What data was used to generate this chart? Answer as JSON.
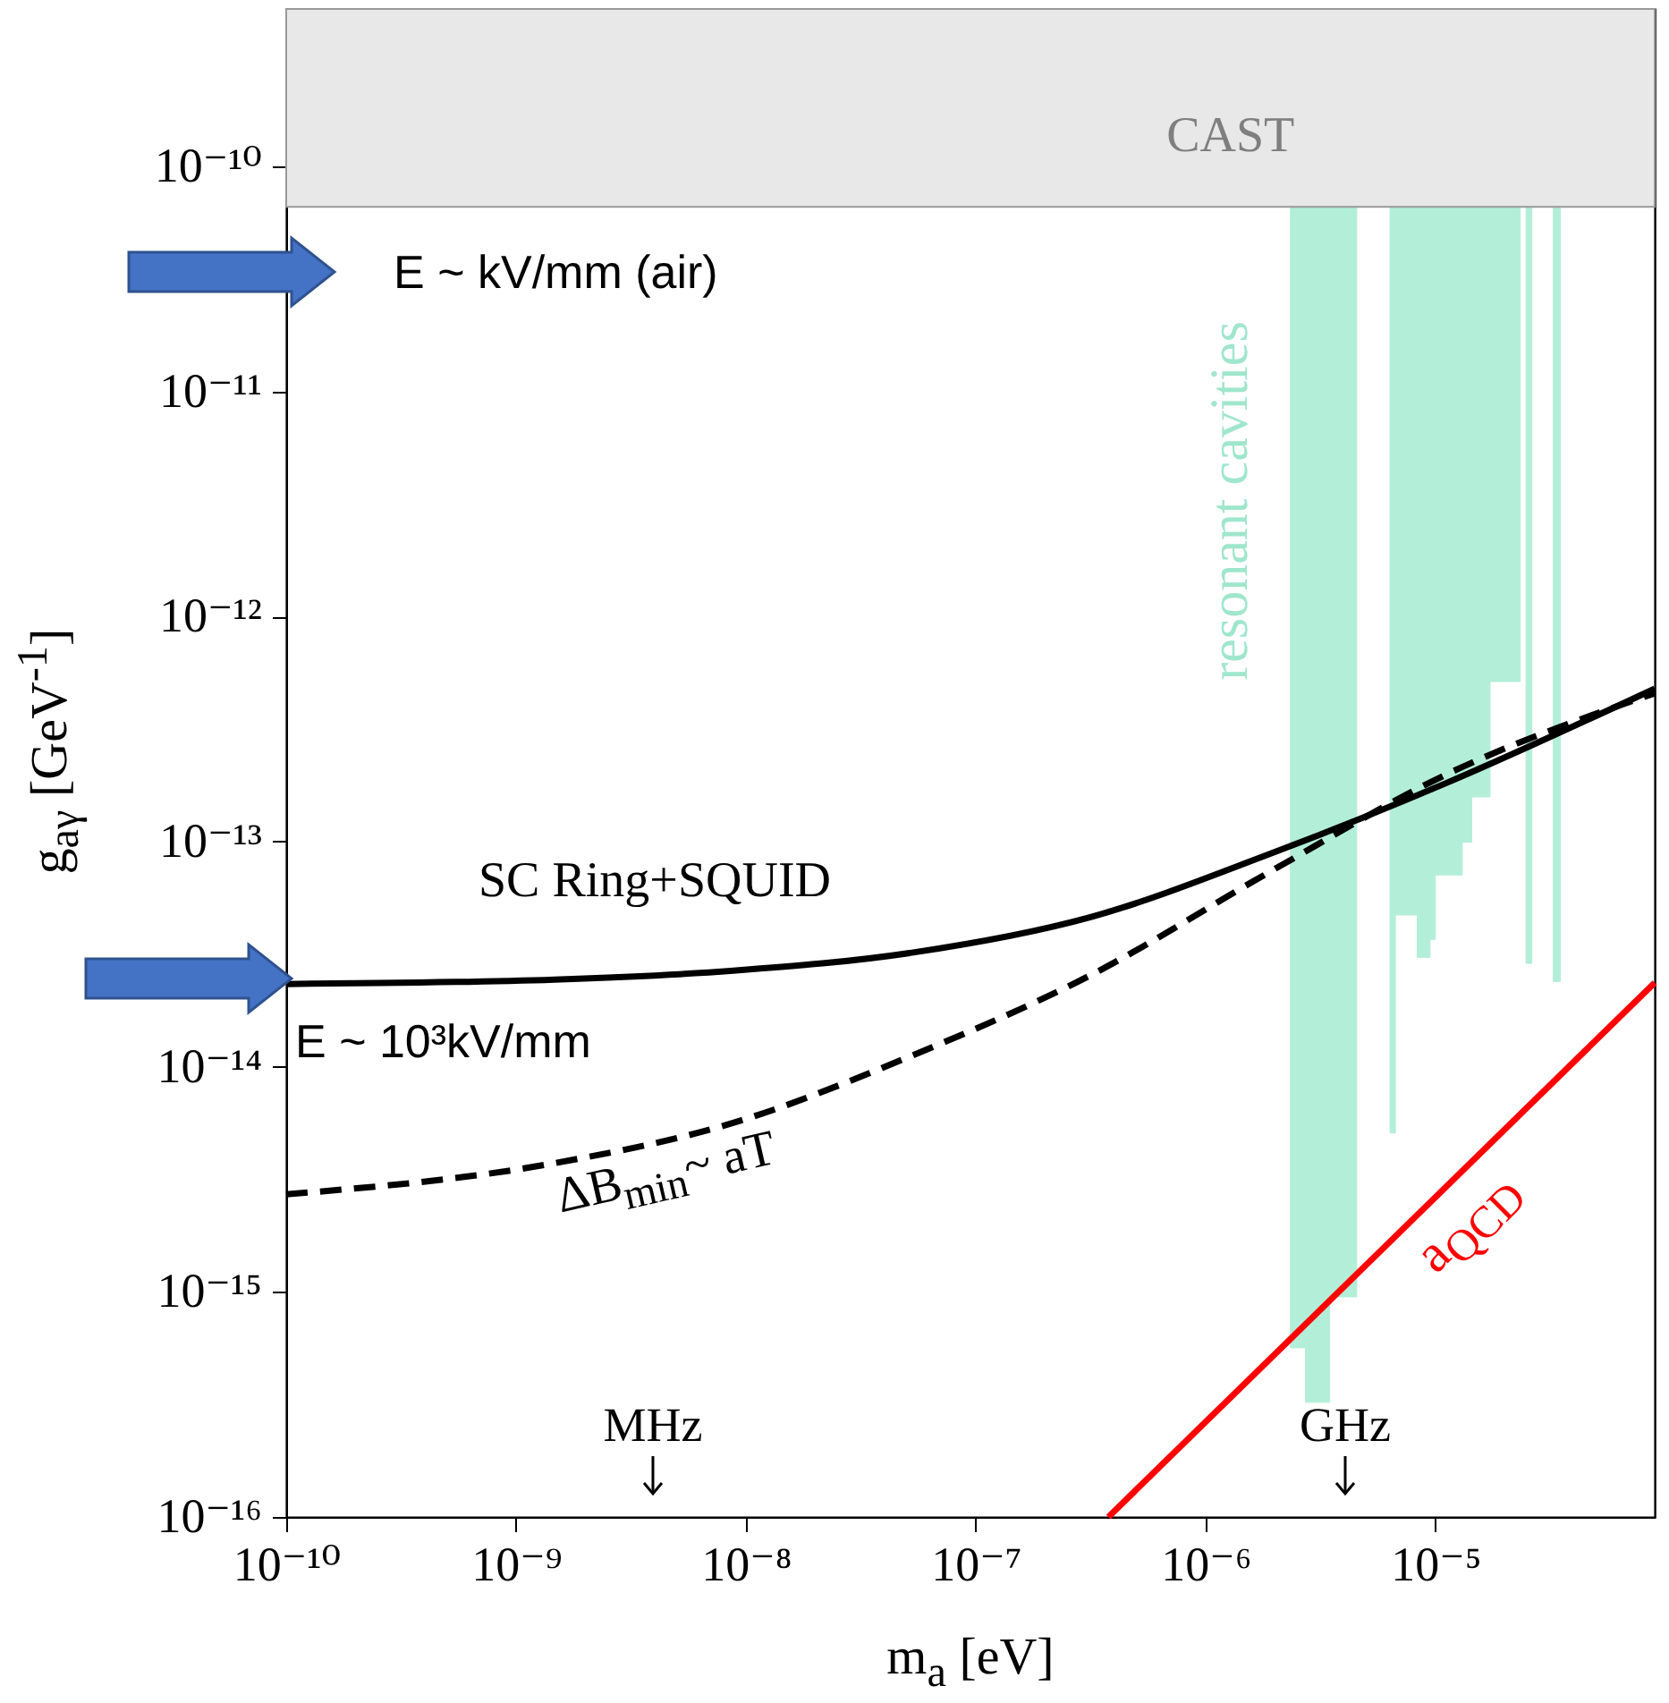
{
  "chart_data": {
    "type": "line",
    "xlabel": "m$_{a}$ [eV]",
    "ylabel": "g$_{aγ}$ [GeV$^{-1}$]",
    "log": "xy",
    "xlim": [
      1e-10,
      9e-05
    ],
    "ylim": [
      1e-16,
      5e-10
    ],
    "xticks": [
      {
        "value": 1e-10,
        "label": "10⁻¹⁰"
      },
      {
        "value": 1e-09,
        "label": "10⁻⁹"
      },
      {
        "value": 1e-08,
        "label": "10⁻⁸"
      },
      {
        "value": 1e-07,
        "label": "10⁻⁷"
      },
      {
        "value": 1e-06,
        "label": "10⁻⁶"
      },
      {
        "value": 1e-05,
        "label": "10⁻⁵"
      }
    ],
    "yticks": [
      {
        "value": 1e-16,
        "label": "10⁻¹⁶"
      },
      {
        "value": 1e-15,
        "label": "10⁻¹⁵"
      },
      {
        "value": 1e-14,
        "label": "10⁻¹⁴"
      },
      {
        "value": 1e-13,
        "label": "10⁻¹³"
      },
      {
        "value": 1e-12,
        "label": "10⁻¹²"
      },
      {
        "value": 1e-11,
        "label": "10⁻¹¹"
      },
      {
        "value": 1e-10,
        "label": "10⁻¹⁰"
      }
    ],
    "series": [
      {
        "name": "resonant cavities",
        "type": "area",
        "color": "#b3eed9",
        "x": [
          2.34e-06,
          2.34e-06,
          2.72e-06,
          2.72e-06,
          3.47e-06,
          3.47e-06,
          4.55e-06,
          4.55e-06,
          6.35e-06,
          6.35e-06,
          6.7e-06,
          6.7e-06,
          8.34e-06,
          8.34e-06,
          9.48e-06,
          9.48e-06,
          1e-05,
          1e-05,
          1.31e-05,
          1.31e-05,
          1.44e-05,
          1.44e-05,
          1.73e-05,
          1.73e-05,
          2.34e-05,
          2.34e-05,
          2.48e-05,
          2.48e-05,
          2.63e-05,
          2.63e-05,
          3.26e-05,
          3.26e-05,
          3.5e-05,
          3.5e-05
        ],
        "values": [
          6.6e-11,
          5.64e-16,
          5.64e-16,
          3.23e-16,
          3.23e-16,
          9.5e-16,
          9.5e-16,
          6.6e-11,
          6.6e-11,
          5.08e-15,
          5.08e-15,
          4.72e-14,
          4.72e-14,
          3.06e-14,
          3.06e-14,
          3.68e-14,
          3.68e-14,
          7.11e-14,
          7.11e-14,
          9.93e-14,
          9.93e-14,
          1.58e-13,
          1.58e-13,
          5.14e-13,
          5.14e-13,
          6.6e-11,
          6.6e-11,
          2.88e-14,
          2.88e-14,
          6.6e-11,
          6.6e-11,
          2.39e-14,
          2.39e-14,
          6.6e-11
        ]
      },
      {
        "name": "SC Ring+SQUID",
        "color": "#000000",
        "line_style": "solid",
        "x": [
          1e-10,
          1.47e-09,
          8.8e-09,
          5.27e-08,
          3.16e-07,
          1.89e-06,
          1.13e-05,
          9e-05
        ],
        "values": [
          2.33e-14,
          2.44e-14,
          2.67e-14,
          3.21e-14,
          4.62e-14,
          8.79e-14,
          1.83e-13,
          4.78e-13
        ]
      },
      {
        "name": "ΔB$_{min}$~ aT",
        "color": "#000000",
        "line_style": "dashed",
        "x": [
          1e-10,
          1.47e-09,
          8.8e-09,
          5.27e-08,
          3.16e-07,
          1.89e-06,
          1.13e-05,
          9e-05
        ],
        "values": [
          2.71e-15,
          3.73e-15,
          5.63e-15,
          1.12e-14,
          2.55e-14,
          7.31e-14,
          2e-13,
          4.56e-13
        ]
      },
      {
        "name": "a$_{QCD}$",
        "color": "#ff0000",
        "line_style": "solid",
        "x": [
          3.78e-07,
          9e-05
        ],
        "values": [
          1e-16,
          2.36e-14
        ]
      }
    ],
    "bands": [
      {
        "axis": "y",
        "from": 6.6e-11,
        "to": 5e-10,
        "label": "CAST",
        "color": "#e8e8e8"
      }
    ],
    "annotations": [
      "E ~ kV/mm (air)",
      "E ~ 10³kV/mm",
      "MHz",
      "GHz"
    ]
  }
}
